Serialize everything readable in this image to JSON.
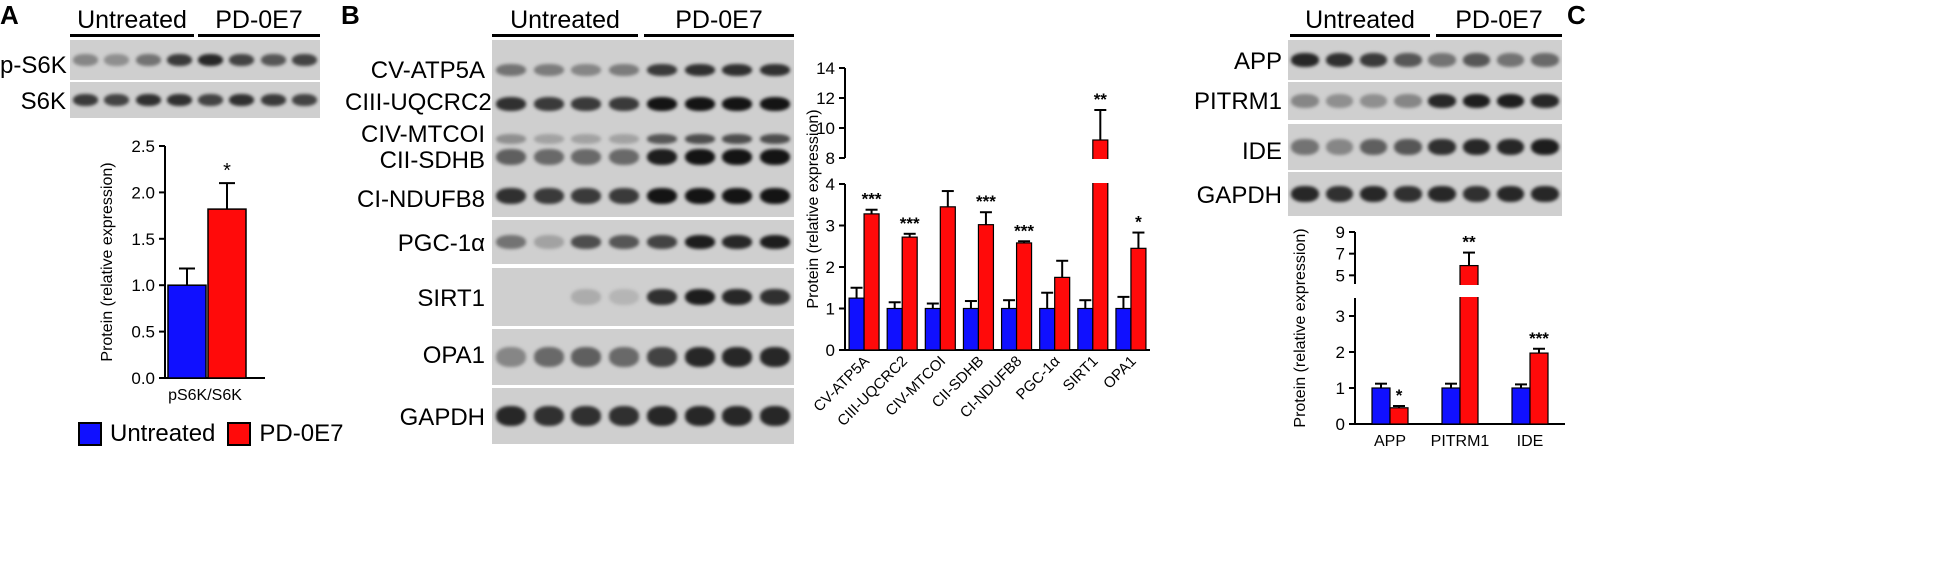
{
  "panels": {
    "a": "A",
    "b": "B",
    "c": "C"
  },
  "groups": {
    "untreated": "Untreated",
    "treated": "PD-0E7"
  },
  "colors": {
    "untreated": "#1010ff",
    "treated": "#ff0a0a"
  },
  "legend": {
    "untreated": "Untreated",
    "treated": "PD-0E7"
  },
  "blotA": [
    {
      "label": "p-S6K",
      "intensity": [
        0.35,
        0.3,
        0.45,
        0.75,
        0.85,
        0.7,
        0.6,
        0.7
      ]
    },
    {
      "label": "S6K",
      "intensity": [
        0.75,
        0.7,
        0.8,
        0.8,
        0.7,
        0.8,
        0.75,
        0.7
      ]
    }
  ],
  "blotB": [
    {
      "label": "CV-ATP5A",
      "intensity": [
        0.45,
        0.4,
        0.35,
        0.4,
        0.75,
        0.8,
        0.8,
        0.8
      ]
    },
    {
      "label": "CIII-UQCRC2",
      "intensity": [
        0.8,
        0.75,
        0.75,
        0.75,
        0.95,
        0.95,
        0.95,
        0.95
      ]
    },
    {
      "label": "CIV-MTCOI",
      "intensity": [
        0.3,
        0.2,
        0.2,
        0.2,
        0.6,
        0.65,
        0.65,
        0.65
      ]
    },
    {
      "label": "CII-SDHB",
      "intensity": [
        0.55,
        0.5,
        0.5,
        0.5,
        0.9,
        0.95,
        0.95,
        0.95
      ]
    },
    {
      "label": "CI-NDUFB8",
      "intensity": [
        0.8,
        0.75,
        0.75,
        0.75,
        0.95,
        0.95,
        0.95,
        0.95
      ]
    },
    {
      "label": "PGC-1α",
      "intensity": [
        0.45,
        0.2,
        0.65,
        0.6,
        0.7,
        0.9,
        0.85,
        0.9
      ]
    },
    {
      "label": "SIRT1",
      "intensity": [
        0.0,
        0.0,
        0.15,
        0.1,
        0.8,
        0.9,
        0.85,
        0.8
      ]
    },
    {
      "label": "OPA1",
      "intensity": [
        0.35,
        0.5,
        0.55,
        0.5,
        0.7,
        0.85,
        0.85,
        0.85
      ]
    },
    {
      "label": "GAPDH",
      "intensity": [
        0.85,
        0.8,
        0.8,
        0.8,
        0.85,
        0.85,
        0.85,
        0.85
      ]
    }
  ],
  "blotC": [
    {
      "label": "APP",
      "intensity": [
        0.85,
        0.8,
        0.75,
        0.6,
        0.45,
        0.6,
        0.45,
        0.5
      ]
    },
    {
      "label": "PITRM1",
      "intensity": [
        0.35,
        0.3,
        0.3,
        0.35,
        0.85,
        0.9,
        0.9,
        0.85
      ]
    },
    {
      "label": "IDE",
      "intensity": [
        0.45,
        0.35,
        0.55,
        0.6,
        0.8,
        0.85,
        0.85,
        0.9
      ]
    },
    {
      "label": "GAPDH",
      "intensity": [
        0.85,
        0.8,
        0.85,
        0.8,
        0.85,
        0.8,
        0.85,
        0.85
      ]
    }
  ],
  "chart_data": [
    {
      "panel": "A",
      "type": "bar",
      "ylabel": "Protein (relative expression)",
      "categories": [
        "pS6K/S6K"
      ],
      "ylim": [
        0,
        2.5
      ],
      "yticks": [
        "0.0",
        "0.5",
        "1.0",
        "1.5",
        "2.0",
        "2.5"
      ],
      "series": [
        {
          "name": "Untreated",
          "values": [
            1.0
          ],
          "errors": [
            0.18
          ]
        },
        {
          "name": "PD-0E7",
          "values": [
            1.82
          ],
          "errors": [
            0.28
          ]
        }
      ],
      "annotations": [
        "*"
      ]
    },
    {
      "panel": "B",
      "type": "bar",
      "ylabel": "Protein (relative expression)",
      "categories": [
        "CV-ATP5A",
        "CIII-UQCRC2",
        "CIV-MTCOI",
        "CII-SDHB",
        "CI-NDUFB8",
        "PGC-1α",
        "SIRT1",
        "OPA1"
      ],
      "axis_break": {
        "lower": [
          0,
          4
        ],
        "upper": [
          8,
          14
        ]
      },
      "yticks": [
        "0",
        "1",
        "2",
        "3",
        "4",
        "8",
        "10",
        "12",
        "14"
      ],
      "series": [
        {
          "name": "Untreated",
          "values": [
            1.25,
            1.0,
            1.0,
            1.0,
            1.0,
            1.0,
            1.0,
            1.0
          ],
          "errors": [
            0.25,
            0.15,
            0.12,
            0.18,
            0.2,
            0.38,
            0.2,
            0.28
          ]
        },
        {
          "name": "PD-0E7",
          "values": [
            3.28,
            2.72,
            3.45,
            3.02,
            2.58,
            1.75,
            9.2,
            2.45
          ],
          "errors": [
            0.1,
            0.08,
            0.38,
            0.3,
            0.04,
            0.4,
            2.0,
            0.38
          ]
        }
      ],
      "annotations": [
        "***",
        "***",
        "***",
        "***",
        "***",
        "",
        "**",
        "*"
      ]
    },
    {
      "panel": "C",
      "type": "bar",
      "ylabel": "Protein (relative expression)",
      "categories": [
        "APP",
        "PITRM1",
        "IDE"
      ],
      "axis_break": {
        "lower": [
          0,
          3.5
        ],
        "upper": [
          4.2,
          9
        ]
      },
      "yticks": [
        "0",
        "1",
        "2",
        "3",
        "5",
        "7",
        "9"
      ],
      "series": [
        {
          "name": "Untreated",
          "values": [
            1.0,
            1.0,
            1.0
          ],
          "errors": [
            0.12,
            0.12,
            0.1
          ]
        },
        {
          "name": "PD-0E7",
          "values": [
            0.45,
            5.9,
            1.97
          ],
          "errors": [
            0.05,
            1.2,
            0.12
          ]
        }
      ],
      "annotations": [
        "*",
        "**",
        "***"
      ]
    }
  ]
}
